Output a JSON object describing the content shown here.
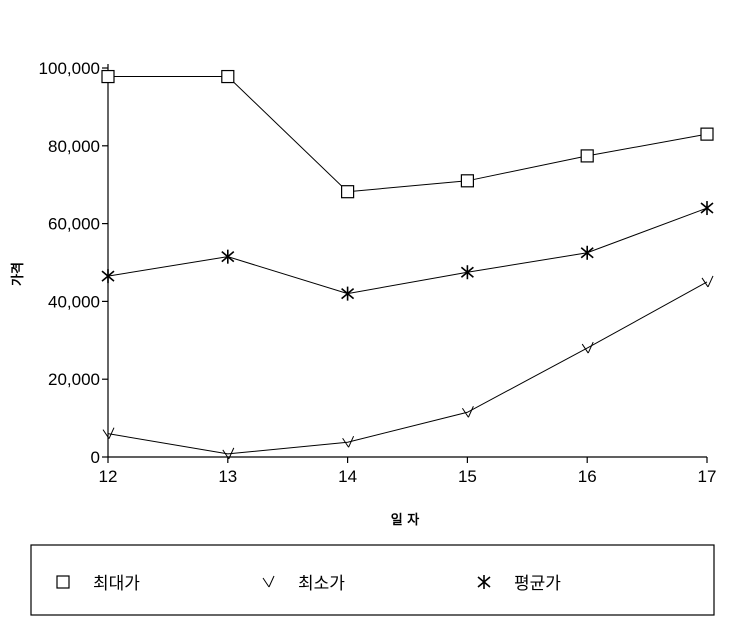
{
  "chart_data": {
    "type": "line",
    "xlabel": "일 자",
    "ylabel": "가격",
    "x": [
      "12",
      "13",
      "14",
      "15",
      "16",
      "17"
    ],
    "ylim": [
      0,
      100000
    ],
    "yticks": [
      "0",
      "20,000",
      "40,000",
      "60,000",
      "80,000",
      "100,000"
    ],
    "grid": false,
    "legend_position": "bottom",
    "series": [
      {
        "name": "최대가",
        "marker": "square",
        "values": [
          97800,
          97800,
          68200,
          71000,
          77400,
          83000
        ]
      },
      {
        "name": "최소가",
        "marker": "slash",
        "values": [
          6000,
          800,
          3800,
          11500,
          28000,
          45000
        ]
      },
      {
        "name": "평균가",
        "marker": "star",
        "values": [
          46500,
          51500,
          42000,
          47500,
          52500,
          64000
        ]
      }
    ]
  }
}
